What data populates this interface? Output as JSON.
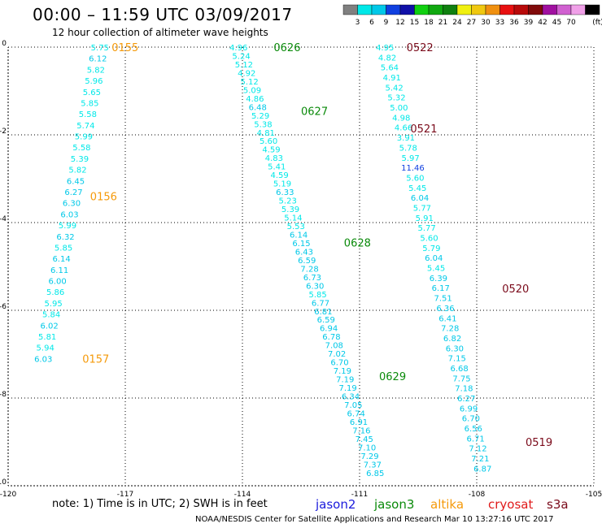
{
  "header": {
    "title": "00:00 – 11:59 UTC 03/09/2017",
    "subtitle": "12 hour collection of altimeter wave heights"
  },
  "footer": {
    "note": "note: 1) Time is in UTC; 2) SWH is in feet",
    "credit": "NOAA/NESDIS Center for Satellite Applications and Research   Mar 10 13:27:16 UTC 2017"
  },
  "satellites": [
    {
      "name": "jason2",
      "color": "#1a1adc"
    },
    {
      "name": "jason3",
      "color": "#0a8a0a"
    },
    {
      "name": "altika",
      "color": "#f59a0a"
    },
    {
      "name": "cryosat",
      "color": "#e01a1a"
    },
    {
      "name": "s3a",
      "color": "#7a0a1a"
    }
  ],
  "chart_data": {
    "type": "scatter",
    "x_ticks": [
      "-120",
      "-117",
      "-114",
      "-111",
      "-108",
      "-105"
    ],
    "y_ticks": [
      "0",
      "-2",
      "-4",
      "-6",
      "-8",
      "-10"
    ],
    "xlim": [
      -120,
      -105
    ],
    "ylim": [
      -10,
      0
    ],
    "grid": true,
    "colorbar": {
      "labels": [
        "3",
        "6",
        "9",
        "12",
        "15",
        "18",
        "21",
        "24",
        "27",
        "30",
        "33",
        "36",
        "39",
        "42",
        "45",
        "70"
      ],
      "unit": "(ft)",
      "colors": [
        "#808080",
        "#00e8e8",
        "#00c8e8",
        "#1040e0",
        "#1010a8",
        "#10d010",
        "#10a810",
        "#108010",
        "#f0f010",
        "#f0c810",
        "#f09010",
        "#e81010",
        "#b80a0a",
        "#800a0a",
        "#a010a0",
        "#d060d0",
        "#f0a0e8",
        "#000000"
      ]
    },
    "tracks": [
      {
        "satellite": "altika",
        "times": [
          {
            "label": "0155",
            "lon": -117.35,
            "lat": 0.0
          },
          {
            "label": "0156",
            "lon": -117.9,
            "lat": -3.4
          },
          {
            "label": "0157",
            "lon": -118.1,
            "lat": -7.1
          }
        ],
        "start": [
          -117.65,
          0.0
        ],
        "end": [
          -119.1,
          -7.1
        ],
        "values": [
          "5.75",
          "6.12",
          "5.82",
          "5.96",
          "5.65",
          "5.85",
          "5.58",
          "5.74",
          "5.99",
          "5.58",
          "5.39",
          "5.82",
          "6.45",
          "6.27",
          "6.30",
          "6.03",
          "5.99",
          "6.32",
          "5.85",
          "6.14",
          "6.11",
          "6.00",
          "5.86",
          "5.95",
          "5.84",
          "6.02",
          "5.81",
          "5.94",
          "6.03"
        ]
      },
      {
        "satellite": "jason3",
        "times": [
          {
            "label": "0626",
            "lon": -113.2,
            "lat": 0.0
          },
          {
            "label": "0627",
            "lon": -112.5,
            "lat": -1.45
          },
          {
            "label": "0628",
            "lon": -111.4,
            "lat": -4.45
          },
          {
            "label": "0629",
            "lon": -110.5,
            "lat": -7.5
          }
        ],
        "start": [
          -114.1,
          0.0
        ],
        "end": [
          -110.6,
          -9.7
        ],
        "values": [
          "4.96",
          "5.24",
          "5.12",
          "4.92",
          "5.12",
          "5.09",
          "4.86",
          "6.48",
          "5.29",
          "5.38",
          "4.81",
          "5.60",
          "4.59",
          "4.83",
          "5.41",
          "4.59",
          "5.19",
          "6.33",
          "5.23",
          "5.39",
          "5.14",
          "5.53",
          "6.14",
          "6.15",
          "6.43",
          "6.59",
          "7.28",
          "6.73",
          "6.30",
          "5.85",
          "6.77",
          "6.81",
          "6.59",
          "6.94",
          "6.78",
          "7.08",
          "7.02",
          "6.70",
          "7.19",
          "7.19",
          "7.19",
          "6.34",
          "7.05",
          "6.74",
          "6.91",
          "7.16",
          "7.45",
          "7.10",
          "7.29",
          "7.37",
          "6.85"
        ]
      },
      {
        "satellite": "s3a",
        "times": [
          {
            "label": "0522",
            "lon": -109.8,
            "lat": 0.0
          },
          {
            "label": "0521",
            "lon": -109.7,
            "lat": -1.85
          },
          {
            "label": "0520",
            "lon": -107.35,
            "lat": -5.5
          },
          {
            "label": "0519",
            "lon": -106.75,
            "lat": -9.0
          }
        ],
        "start": [
          -110.35,
          0.0
        ],
        "end": [
          -107.85,
          -9.6
        ],
        "values": [
          "4.95",
          "4.82",
          "5.64",
          "4.91",
          "5.42",
          "5.32",
          "5.00",
          "4.98",
          "4.66",
          "3.91",
          "5.78",
          "5.97",
          "11.46",
          "5.60",
          "5.45",
          "6.04",
          "5.77",
          "5.91",
          "5.77",
          "5.60",
          "5.79",
          "6.04",
          "5.45",
          "6.39",
          "6.17",
          "7.51",
          "6.36",
          "6.41",
          "7.28",
          "6.82",
          "6.30",
          "7.15",
          "6.68",
          "7.75",
          "7.18",
          "6.27",
          "6.99",
          "6.70",
          "6.56",
          "6.71",
          "7.12",
          "7.21",
          "6.87"
        ]
      }
    ]
  }
}
